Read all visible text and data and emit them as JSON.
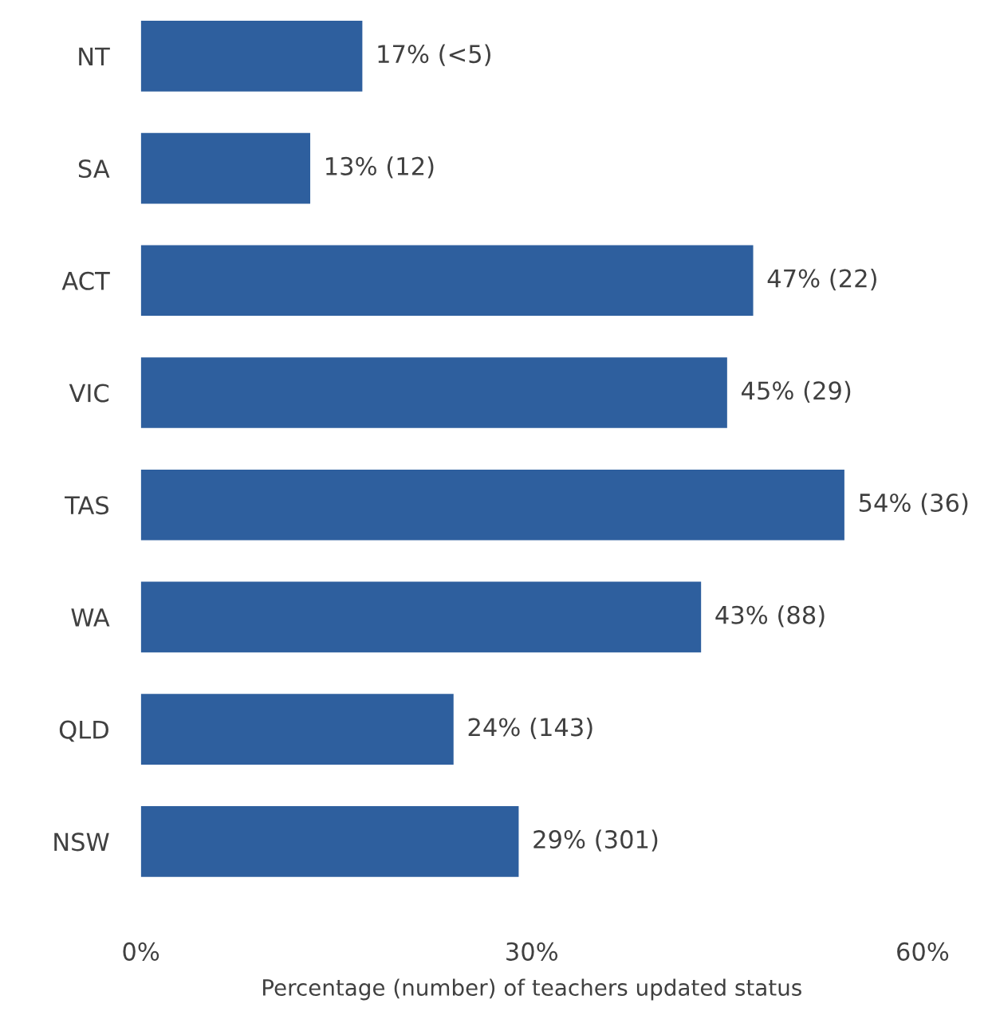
{
  "chart_data": {
    "type": "bar",
    "orientation": "horizontal",
    "xlabel": "Percentage (number) of teachers updated status",
    "categories": [
      "NT",
      "SA",
      "ACT",
      "VIC",
      "TAS",
      "WA",
      "QLD",
      "NSW"
    ],
    "values": [
      17,
      13,
      47,
      45,
      54,
      43,
      24,
      29
    ],
    "value_labels": [
      "17% (<5)",
      "13% (12)",
      "47% (22)",
      "45% (29)",
      "54% (36)",
      "43% (88)",
      "24% (143)",
      "29% (301)"
    ],
    "color": "#2e5f9e",
    "xlim": [
      0,
      60
    ],
    "xticks": [
      {
        "value": 0,
        "label": "0%"
      },
      {
        "value": 30,
        "label": "30%"
      },
      {
        "value": 60,
        "label": "60%"
      }
    ],
    "grid": false,
    "legend": false
  }
}
